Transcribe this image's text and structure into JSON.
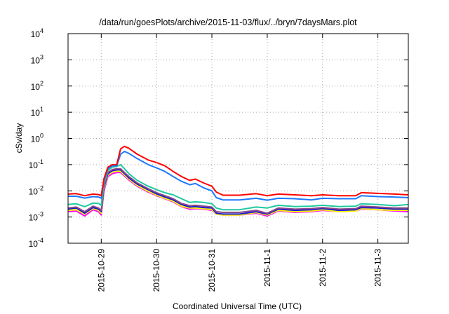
{
  "chart_data": {
    "type": "line",
    "title": "/data/run/goesPlots/archive/2015-11-03/flux/../bryn/7daysMars.plot",
    "xlabel": "Coordinated Universal Time (UTC)",
    "ylabel": "cSv/day",
    "yscale": "log",
    "ylim": [
      0.0001,
      10000
    ],
    "xunits": "days since 2015-10-28 00:00 UTC",
    "xlim": [
      0.4,
      6.55
    ],
    "grid": true,
    "y_ticks": [
      {
        "exp": -4,
        "label": "10",
        "sup": "-4"
      },
      {
        "exp": -3,
        "label": "10",
        "sup": "-3"
      },
      {
        "exp": -2,
        "label": "10",
        "sup": "-2"
      },
      {
        "exp": -1,
        "label": "10",
        "sup": "-1"
      },
      {
        "exp": 0,
        "label": "10",
        "sup": "0"
      },
      {
        "exp": 1,
        "label": "10",
        "sup": "1"
      },
      {
        "exp": 2,
        "label": "10",
        "sup": "2"
      },
      {
        "exp": 3,
        "label": "10",
        "sup": "3"
      },
      {
        "exp": 4,
        "label": "10",
        "sup": "4"
      }
    ],
    "x_ticks": [
      {
        "value": 1,
        "label": "2015-10-29"
      },
      {
        "value": 2,
        "label": "2015-10-30"
      },
      {
        "value": 3,
        "label": "2015-10-31"
      },
      {
        "value": 4,
        "label": "2015-11-1"
      },
      {
        "value": 5,
        "label": "2015-11-2"
      },
      {
        "value": 6,
        "label": "2015-11-3"
      }
    ],
    "x": [
      0.4,
      0.55,
      0.7,
      0.85,
      0.95,
      1.0,
      1.05,
      1.12,
      1.2,
      1.28,
      1.35,
      1.42,
      1.5,
      1.65,
      1.85,
      2.0,
      2.15,
      2.3,
      2.45,
      2.6,
      2.7,
      2.85,
      3.0,
      3.08,
      3.2,
      3.5,
      3.8,
      4.0,
      4.2,
      4.5,
      4.8,
      5.0,
      5.3,
      5.6,
      5.7,
      6.0,
      6.3,
      6.55
    ],
    "series": [
      {
        "name": "magenta",
        "color": "#ff00ff",
        "values": [
          0.0016,
          0.0017,
          0.0011,
          0.0019,
          0.0016,
          0.0012,
          0.01,
          0.035,
          0.045,
          0.05,
          0.05,
          0.037,
          0.026,
          0.015,
          0.009,
          0.0065,
          0.005,
          0.0038,
          0.0025,
          0.002,
          0.0021,
          0.002,
          0.0018,
          0.0013,
          0.0012,
          0.0012,
          0.0014,
          0.0011,
          0.0017,
          0.0015,
          0.0016,
          0.0018,
          0.0016,
          0.0017,
          0.002,
          0.0019,
          0.0017,
          0.0016
        ]
      },
      {
        "name": "yellow",
        "color": "#ffff00",
        "values": [
          0.0018,
          0.0019,
          0.0013,
          0.0021,
          0.0018,
          0.0014,
          0.012,
          0.04,
          0.052,
          0.056,
          0.056,
          0.04,
          0.028,
          0.016,
          0.0096,
          0.0068,
          0.0052,
          0.004,
          0.0026,
          0.0022,
          0.0022,
          0.0021,
          0.0019,
          0.0013,
          0.0012,
          0.0012,
          0.0015,
          0.0012,
          0.0018,
          0.0016,
          0.0017,
          0.0019,
          0.0016,
          0.0017,
          0.0021,
          0.0019,
          0.0018,
          0.0018
        ]
      },
      {
        "name": "navy",
        "color": "#1a1ad0",
        "values": [
          0.002,
          0.0022,
          0.0014,
          0.0023,
          0.002,
          0.0016,
          0.0135,
          0.045,
          0.058,
          0.063,
          0.063,
          0.045,
          0.031,
          0.018,
          0.011,
          0.0076,
          0.0058,
          0.0045,
          0.003,
          0.0024,
          0.0025,
          0.0023,
          0.0022,
          0.0014,
          0.0013,
          0.0013,
          0.0016,
          0.0013,
          0.002,
          0.0018,
          0.0019,
          0.0021,
          0.0018,
          0.0019,
          0.0023,
          0.0022,
          0.002,
          0.002
        ]
      },
      {
        "name": "purple",
        "color": "#8a4a8a",
        "values": [
          0.0022,
          0.0024,
          0.0016,
          0.0026,
          0.0022,
          0.0018,
          0.015,
          0.05,
          0.065,
          0.07,
          0.07,
          0.05,
          0.035,
          0.02,
          0.012,
          0.0085,
          0.0065,
          0.005,
          0.0033,
          0.0027,
          0.0028,
          0.0026,
          0.0024,
          0.0016,
          0.0015,
          0.0015,
          0.0018,
          0.0014,
          0.0022,
          0.002,
          0.0021,
          0.0023,
          0.002,
          0.0021,
          0.0026,
          0.0024,
          0.0022,
          0.0022
        ]
      },
      {
        "name": "teal",
        "color": "#20c8a0",
        "values": [
          0.003,
          0.0032,
          0.0025,
          0.0034,
          0.0033,
          0.0028,
          0.02,
          0.06,
          0.08,
          0.085,
          0.1,
          0.07,
          0.045,
          0.025,
          0.015,
          0.011,
          0.0085,
          0.007,
          0.005,
          0.0036,
          0.0038,
          0.0036,
          0.0032,
          0.0022,
          0.0019,
          0.0019,
          0.0024,
          0.0022,
          0.0028,
          0.0025,
          0.0026,
          0.0028,
          0.0025,
          0.0026,
          0.0032,
          0.003,
          0.0027,
          0.003
        ]
      },
      {
        "name": "blue",
        "color": "#1e78ff",
        "values": [
          0.0062,
          0.0062,
          0.0053,
          0.006,
          0.0058,
          0.0052,
          0.025,
          0.07,
          0.09,
          0.09,
          0.25,
          0.32,
          0.27,
          0.17,
          0.1,
          0.075,
          0.055,
          0.035,
          0.023,
          0.017,
          0.019,
          0.013,
          0.01,
          0.0055,
          0.0045,
          0.0045,
          0.0052,
          0.0044,
          0.0052,
          0.005,
          0.0045,
          0.0052,
          0.005,
          0.005,
          0.0065,
          0.006,
          0.0058,
          0.0055
        ]
      },
      {
        "name": "red",
        "color": "#ff0000",
        "values": [
          0.0075,
          0.0078,
          0.0065,
          0.0075,
          0.0072,
          0.0065,
          0.03,
          0.08,
          0.1,
          0.1,
          0.4,
          0.5,
          0.42,
          0.25,
          0.15,
          0.12,
          0.09,
          0.055,
          0.035,
          0.025,
          0.028,
          0.02,
          0.015,
          0.009,
          0.0068,
          0.0068,
          0.0078,
          0.0065,
          0.0075,
          0.007,
          0.0065,
          0.007,
          0.0065,
          0.0065,
          0.0085,
          0.008,
          0.0075,
          0.007
        ]
      }
    ]
  }
}
